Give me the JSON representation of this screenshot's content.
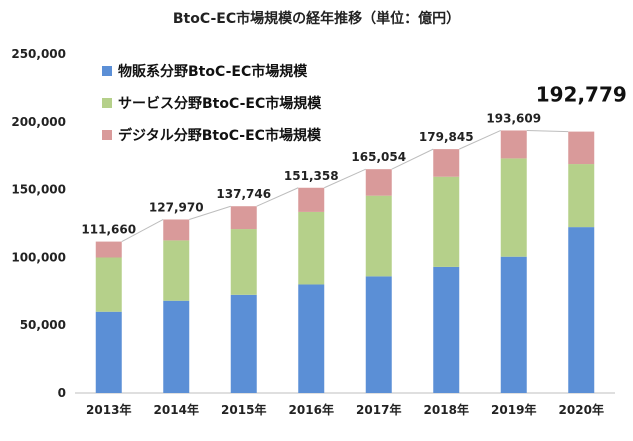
{
  "chart_data": {
    "type": "bar",
    "stacked": true,
    "title": "BtoC-EC市場規模の経年推移（単位：億円）",
    "categories": [
      "2013年",
      "2014年",
      "2015年",
      "2016年",
      "2017年",
      "2018年",
      "2019年",
      "2020年"
    ],
    "series": [
      {
        "name": "物販系分野BtoC-EC市場規模",
        "color": "#5b8fd6",
        "values": [
          59931,
          68043,
          72398,
          80043,
          86008,
          92992,
          100515,
          122333
        ]
      },
      {
        "name": "サービス分野BtoC-EC市場規模",
        "color": "#b5d08a",
        "values": [
          40000,
          44500,
          48500,
          53500,
          59500,
          66500,
          72500,
          46500
        ]
      },
      {
        "name": "デジタル分野BtoC-EC市場規模",
        "color": "#d99a9a",
        "values": [
          11729,
          15427,
          16848,
          17815,
          19546,
          20353,
          20594,
          23946
        ]
      }
    ],
    "totals": [
      "111,660",
      "127,970",
      "137,746",
      "151,358",
      "165,054",
      "179,845",
      "193,609",
      "192,779"
    ],
    "yticks": [
      "0",
      "50,000",
      "100,000",
      "150,000",
      "200,000",
      "250,000"
    ],
    "ylim": [
      0,
      250000
    ],
    "legend_position": "top-left",
    "trend_line": true
  }
}
